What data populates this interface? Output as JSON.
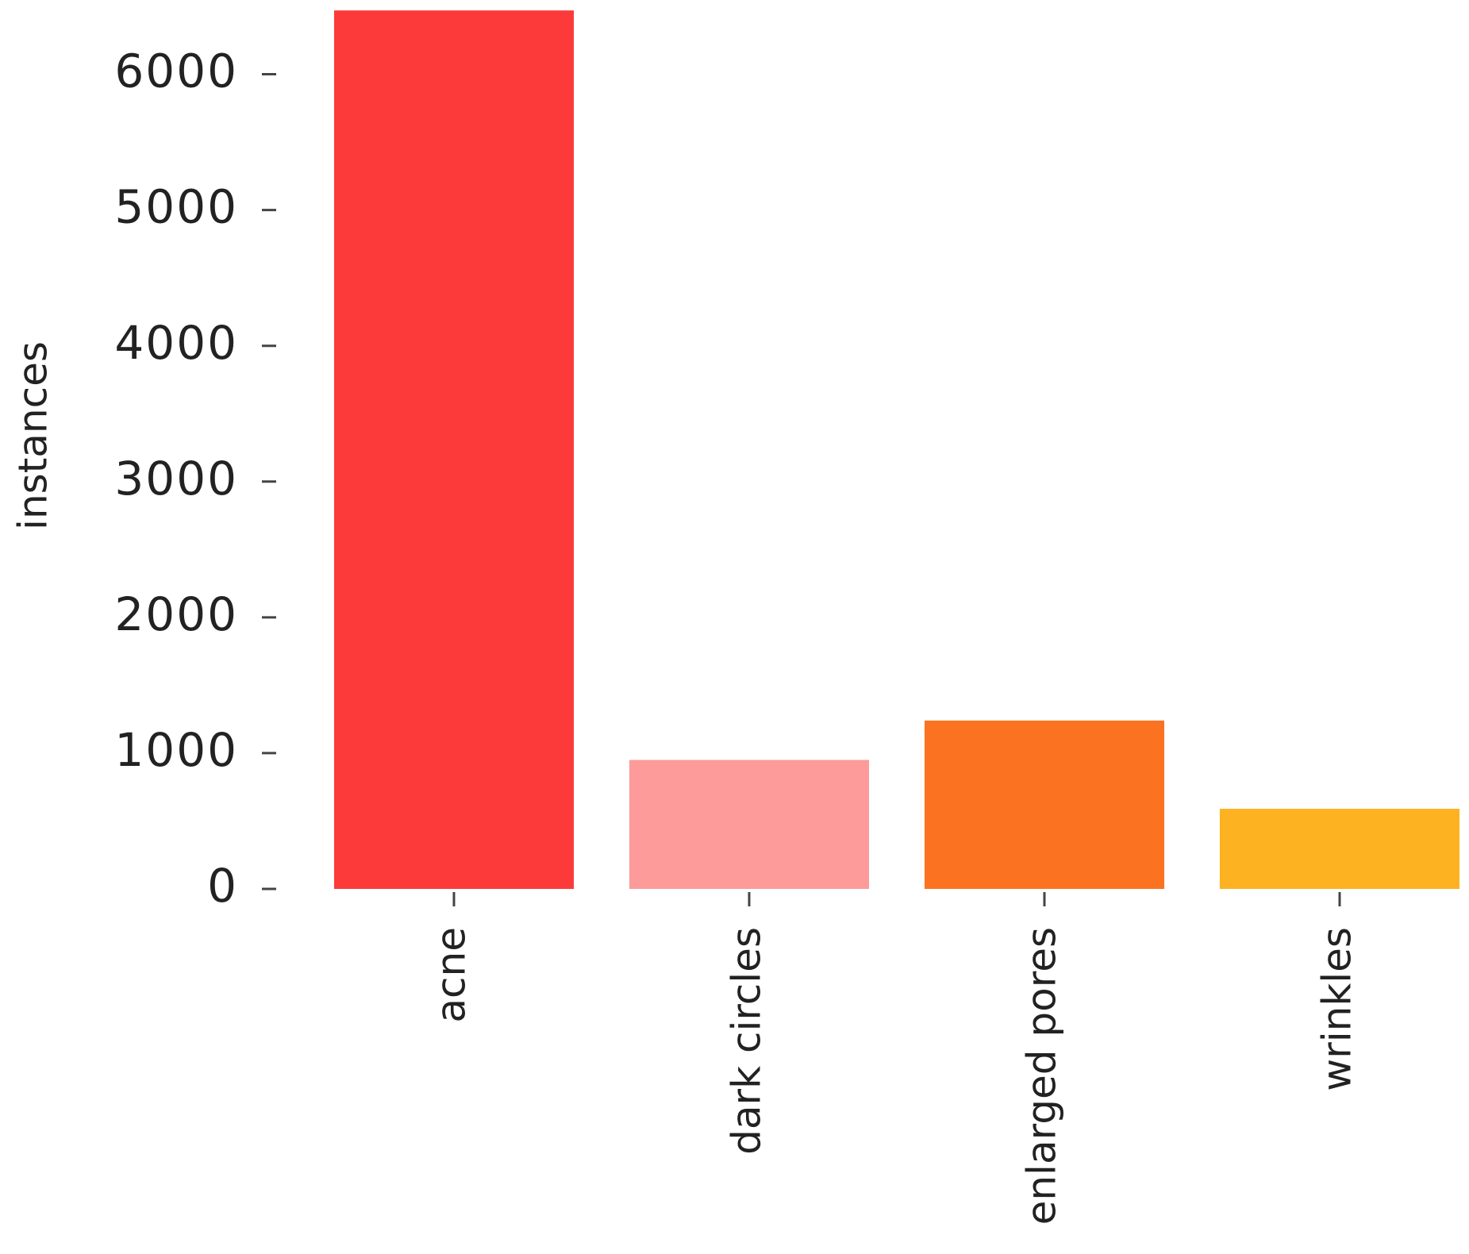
{
  "chart_data": {
    "type": "bar",
    "y_label": "instances",
    "categories": [
      "acne",
      "dark circles",
      "enlarged pores",
      "wrinkles"
    ],
    "values": [
      6470,
      950,
      1240,
      590
    ],
    "colors": [
      "#fd3a3a",
      "#fc9b9a",
      "#fb7321",
      "#fcb221"
    ],
    "ylim": [
      0,
      6500
    ],
    "yticks": [
      0,
      1000,
      2000,
      3000,
      4000,
      5000,
      6000
    ],
    "grid": false
  }
}
